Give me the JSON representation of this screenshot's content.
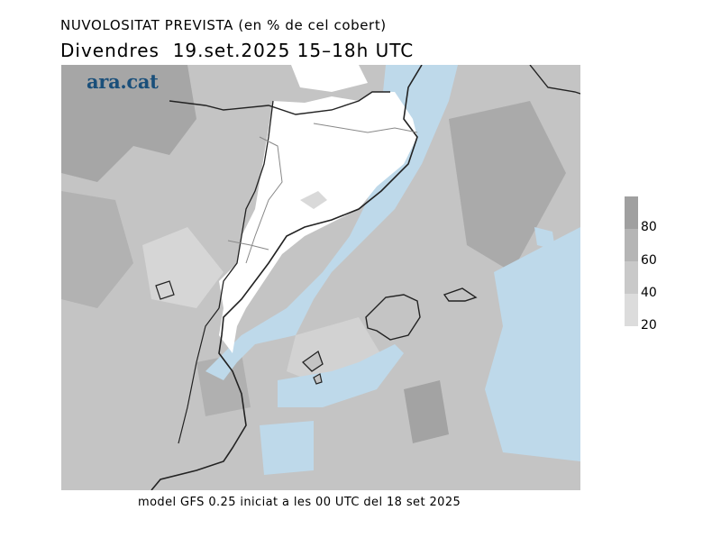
{
  "title_line1": "NUVOLOSITAT PREVISTA (en % de cel cobert)",
  "title_line2": "Divendres  19.set.2025 15–18h UTC",
  "brand": "ara.cat",
  "footer": "model GFS 0.25 iniciat a les 00 UTC del 18 set 2025",
  "legend": {
    "labels": [
      "80",
      "60",
      "40",
      "20"
    ],
    "colors": [
      "#a0a0a0",
      "#b5b5b5",
      "#c9c9c9",
      "#dcdcdc"
    ]
  },
  "colors": {
    "sea_clear": "#bed9ea",
    "land_clear": "#ffffff",
    "brand": "#1a4f7a"
  }
}
